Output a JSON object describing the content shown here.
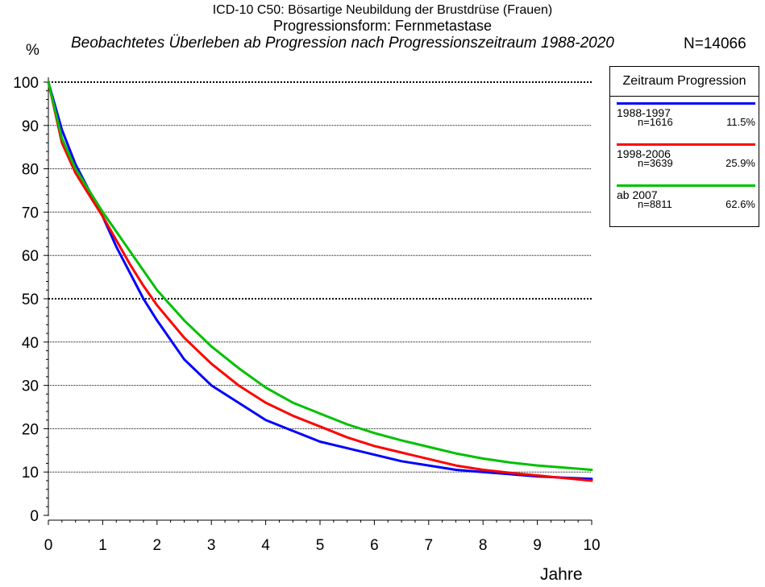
{
  "header": {
    "title_line1": "ICD-10 C50: Bösartige Neubildung der Brustdrüse (Frauen)",
    "title_line2": "Progressionsform: Fernmetastase",
    "title_line3": "Beobachtetes Überleben ab Progression nach Progressionszeitraum 1988-2020",
    "total_n": "N=14066",
    "y_unit": "%"
  },
  "legend": {
    "title": "Zeitraum Progression",
    "items": [
      {
        "name": "1988-1997",
        "n": "n=1616",
        "share": "11.5%",
        "color": "#0000ff"
      },
      {
        "name": "1998-2006",
        "n": "n=3639",
        "share": "25.9%",
        "color": "#ff0000"
      },
      {
        "name": "ab 2007",
        "n": "n=8811",
        "share": "62.6%",
        "color": "#00c000"
      }
    ]
  },
  "chart_data": {
    "type": "line",
    "title": "Beobachtetes Überleben ab Progression nach Progressionszeitraum 1988-2020",
    "xlabel": "Jahre",
    "ylabel": "%",
    "xlim": [
      0,
      10
    ],
    "ylim": [
      0,
      100
    ],
    "x_ticks": [
      "0",
      "1",
      "2",
      "3",
      "4",
      "5",
      "6",
      "7",
      "8",
      "9",
      "10"
    ],
    "y_ticks": [
      "0",
      "10",
      "20",
      "30",
      "40",
      "50",
      "60",
      "70",
      "80",
      "90",
      "100"
    ],
    "grid": true,
    "legend_position": "top-right, outside plot",
    "x": [
      0,
      0.25,
      0.5,
      0.75,
      1,
      1.25,
      1.5,
      1.75,
      2,
      2.5,
      3,
      3.5,
      4,
      4.5,
      5,
      5.5,
      6,
      6.5,
      7,
      7.5,
      8,
      8.5,
      9,
      9.5,
      10
    ],
    "series": [
      {
        "name": "1988-1997",
        "color": "#0000ff",
        "values": [
          100,
          89,
          81,
          75,
          69,
          62,
          56,
          50,
          45,
          36,
          30,
          26,
          22,
          19.5,
          17,
          15.5,
          14,
          12.5,
          11.5,
          10.5,
          10,
          9.5,
          9,
          8.7,
          8.4
        ]
      },
      {
        "name": "1998-2006",
        "color": "#ff0000",
        "values": [
          100,
          86,
          79,
          74,
          69,
          63.5,
          58,
          53,
          48.5,
          41,
          35,
          30,
          26,
          23,
          20.5,
          18,
          16,
          14.5,
          13,
          11.5,
          10.5,
          9.8,
          9.2,
          8.6,
          8
        ]
      },
      {
        "name": "ab 2007",
        "color": "#00c000",
        "values": [
          100,
          87,
          80,
          75,
          70,
          65.5,
          61,
          56.5,
          52,
          45,
          39,
          34,
          29.5,
          26,
          23.5,
          21,
          19,
          17.3,
          15.8,
          14.3,
          13.1,
          12.2,
          11.5,
          11,
          10.5
        ]
      }
    ]
  }
}
